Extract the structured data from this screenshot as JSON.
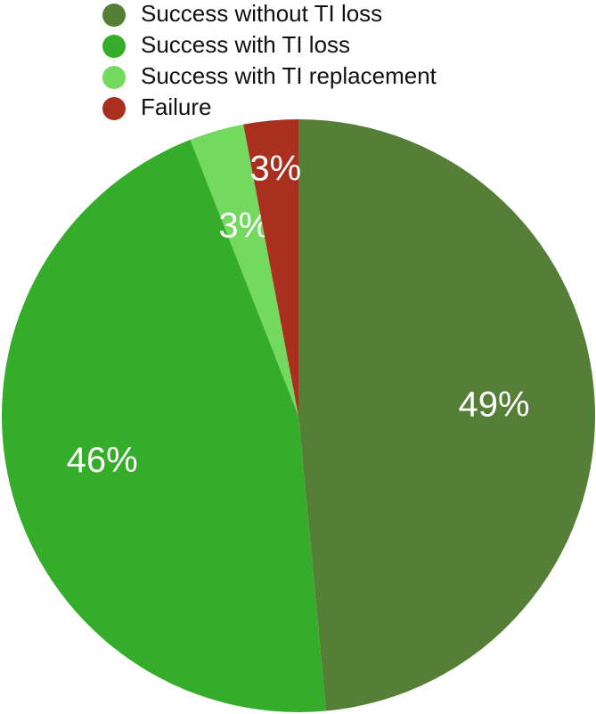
{
  "chart_data": {
    "type": "pie",
    "categories": [
      "Success without TI loss",
      "Success with TI loss",
      "Success with TI replacement",
      "Failure"
    ],
    "values": [
      49,
      46,
      3,
      3
    ],
    "value_labels": [
      "49%",
      "46%",
      "3%",
      "3%"
    ],
    "colors": [
      "#557f36",
      "#35ad2b",
      "#74d95f",
      "#a9301f"
    ],
    "legend": "top-left"
  }
}
